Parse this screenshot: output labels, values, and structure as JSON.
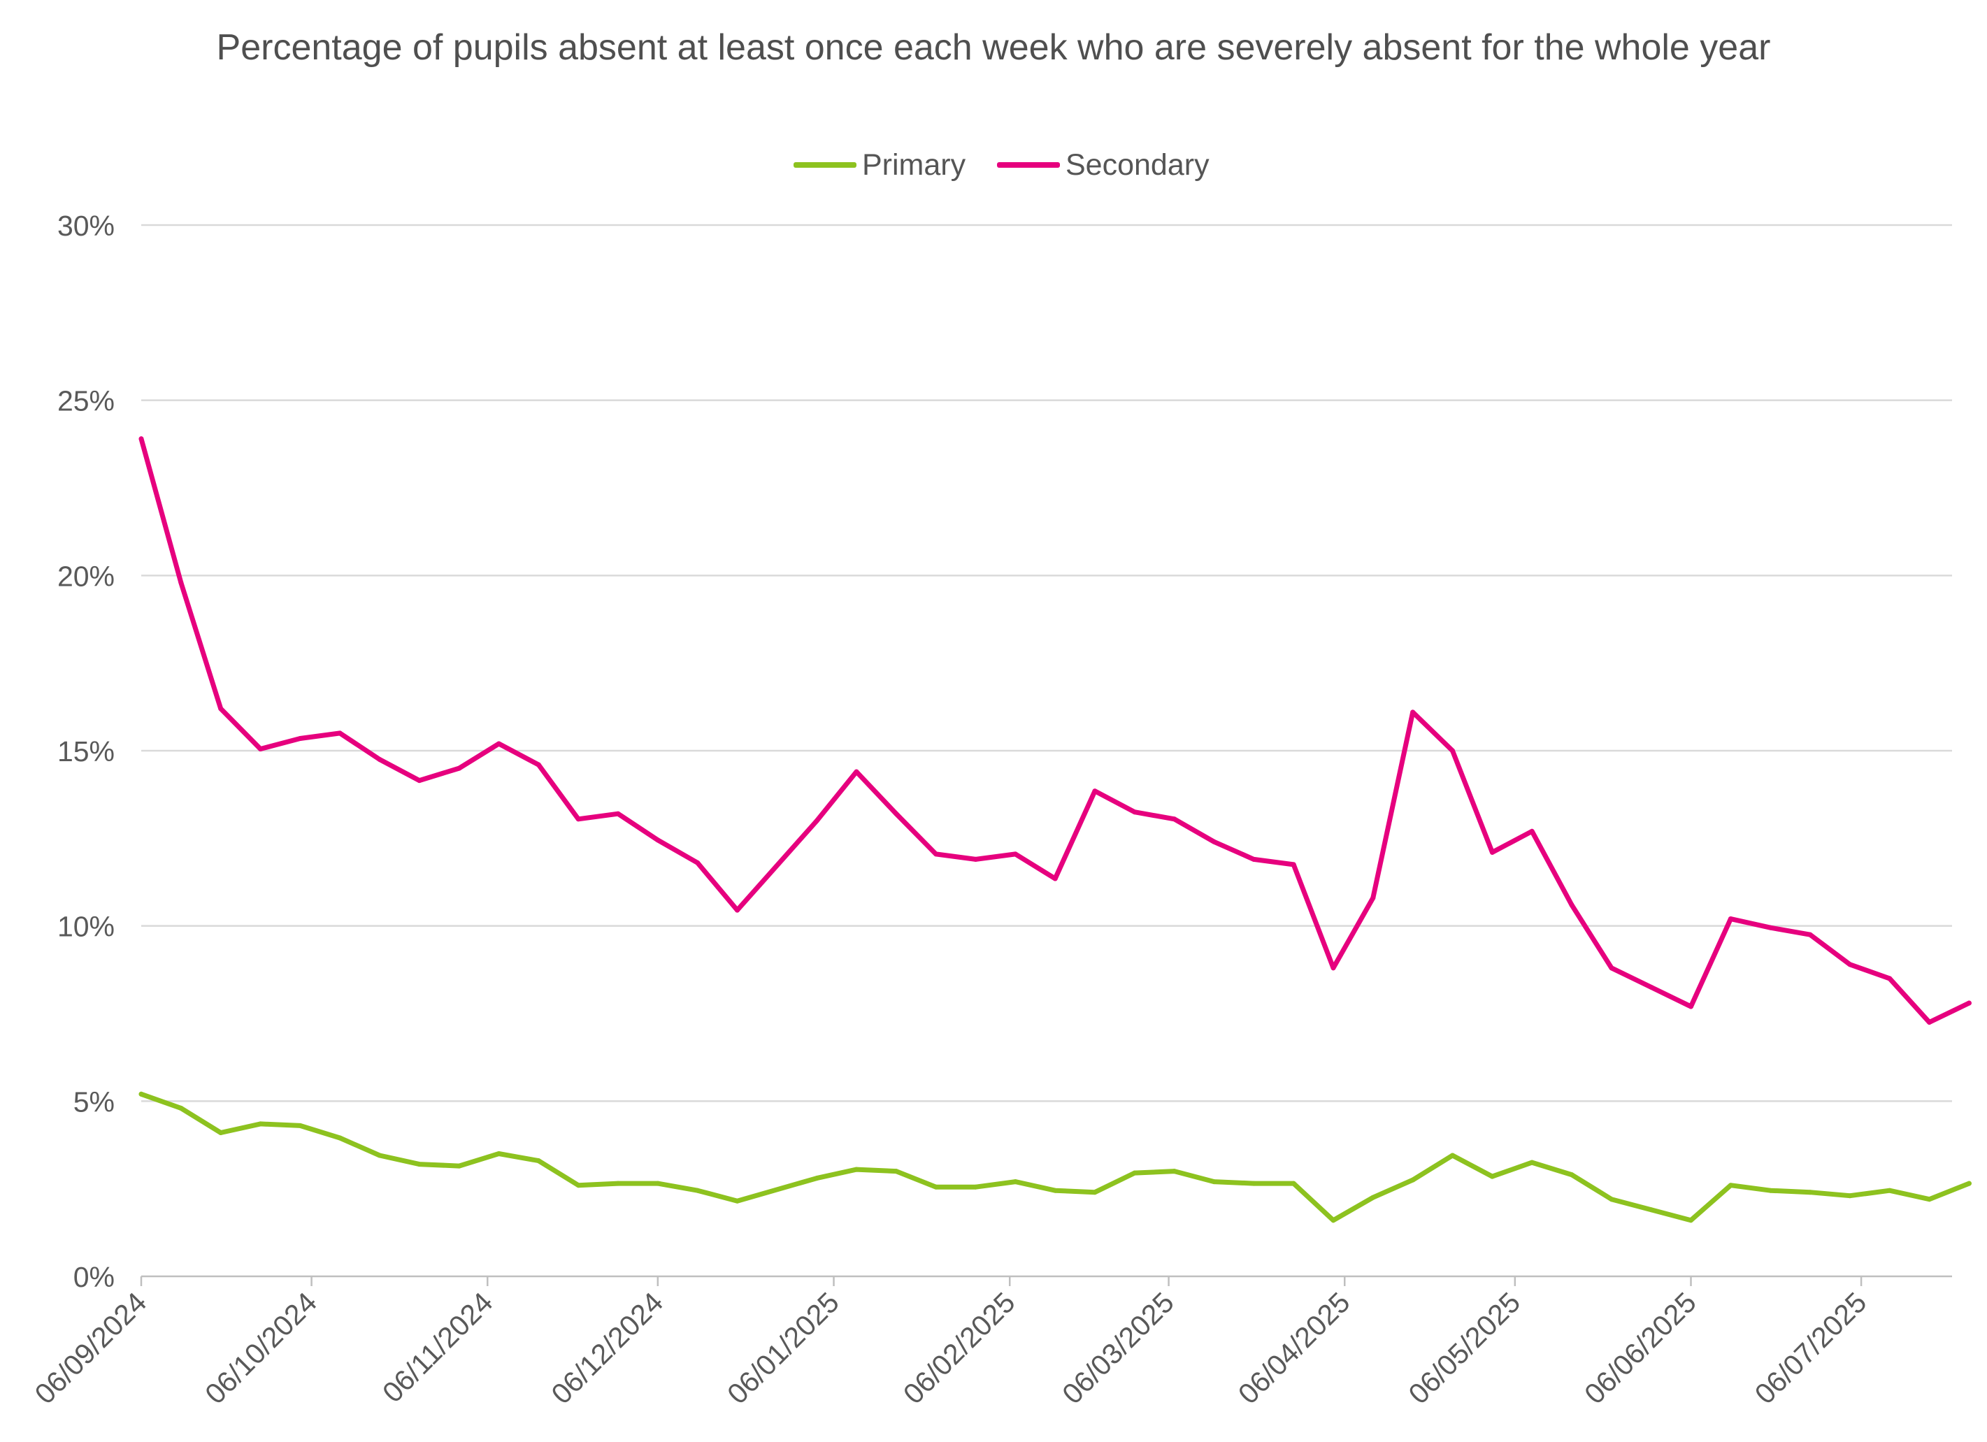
{
  "chart_data": {
    "type": "line",
    "title": "Percentage of pupils absent at least once each week who are severely absent for the whole year",
    "xlabel": "",
    "ylabel": "",
    "x_axis": {
      "start": "2024-09-06",
      "end": "2025-07-22",
      "tick_dates": [
        "2024-09-06",
        "2024-10-06",
        "2024-11-06",
        "2024-12-06",
        "2025-01-06",
        "2025-02-06",
        "2025-03-06",
        "2025-04-06",
        "2025-05-06",
        "2025-06-06",
        "2025-07-06"
      ],
      "tick_labels": [
        "06/09/2024",
        "06/10/2024",
        "06/11/2024",
        "06/12/2024",
        "06/01/2025",
        "06/02/2025",
        "06/03/2025",
        "06/04/2025",
        "06/05/2025",
        "06/06/2025",
        "06/07/2025"
      ]
    },
    "y_axis": {
      "min": 0,
      "max": 30,
      "ticks": [
        0,
        5,
        10,
        15,
        20,
        25,
        30
      ],
      "tick_labels": [
        "0%",
        "5%",
        "10%",
        "15%",
        "20%",
        "25%",
        "30%"
      ]
    },
    "ylim": [
      0,
      30
    ],
    "grid": true,
    "legend_position": "top-center",
    "x": [
      "2024-09-06",
      "2024-09-13",
      "2024-09-20",
      "2024-09-27",
      "2024-10-04",
      "2024-10-11",
      "2024-10-18",
      "2024-10-25",
      "2024-11-01",
      "2024-11-08",
      "2024-11-15",
      "2024-11-22",
      "2024-11-29",
      "2024-12-06",
      "2024-12-13",
      "2024-12-20",
      "2025-01-03",
      "2025-01-10",
      "2025-01-17",
      "2025-01-24",
      "2025-01-31",
      "2025-02-07",
      "2025-02-14",
      "2025-02-21",
      "2025-02-28",
      "2025-03-07",
      "2025-03-14",
      "2025-03-21",
      "2025-03-28",
      "2025-04-04",
      "2025-04-11",
      "2025-04-18",
      "2025-04-25",
      "2025-05-02",
      "2025-05-09",
      "2025-05-16",
      "2025-05-23",
      "2025-05-30",
      "2025-06-06",
      "2025-06-13",
      "2025-06-20",
      "2025-06-27",
      "2025-07-04",
      "2025-07-11",
      "2025-07-18",
      "2025-07-25"
    ],
    "series": [
      {
        "name": "Primary",
        "color": "#8dc21f",
        "values": [
          5.2,
          4.8,
          4.1,
          4.35,
          4.3,
          3.95,
          3.45,
          3.2,
          3.15,
          3.5,
          3.3,
          2.6,
          2.65,
          2.65,
          2.45,
          2.15,
          2.8,
          3.05,
          3.0,
          2.55,
          2.55,
          2.7,
          2.45,
          2.4,
          2.95,
          3.0,
          2.7,
          2.65,
          2.65,
          1.6,
          2.25,
          2.75,
          3.45,
          2.85,
          3.25,
          2.9,
          2.2,
          1.9,
          1.6,
          2.6,
          2.45,
          2.4,
          2.3,
          2.45,
          2.2,
          2.65
        ]
      },
      {
        "name": "Secondary",
        "color": "#e6007e",
        "values": [
          23.9,
          19.8,
          16.2,
          15.05,
          15.35,
          15.5,
          14.75,
          14.15,
          14.5,
          15.2,
          14.6,
          13.05,
          13.2,
          12.45,
          11.8,
          10.45,
          13.0,
          14.4,
          13.2,
          12.05,
          11.9,
          12.05,
          11.35,
          13.85,
          13.25,
          13.05,
          12.4,
          11.9,
          11.75,
          8.8,
          10.8,
          16.1,
          15.0,
          12.1,
          12.7,
          10.6,
          8.8,
          8.25,
          7.7,
          10.2,
          9.95,
          9.75,
          8.9,
          8.5,
          7.25,
          7.8
        ]
      }
    ]
  }
}
